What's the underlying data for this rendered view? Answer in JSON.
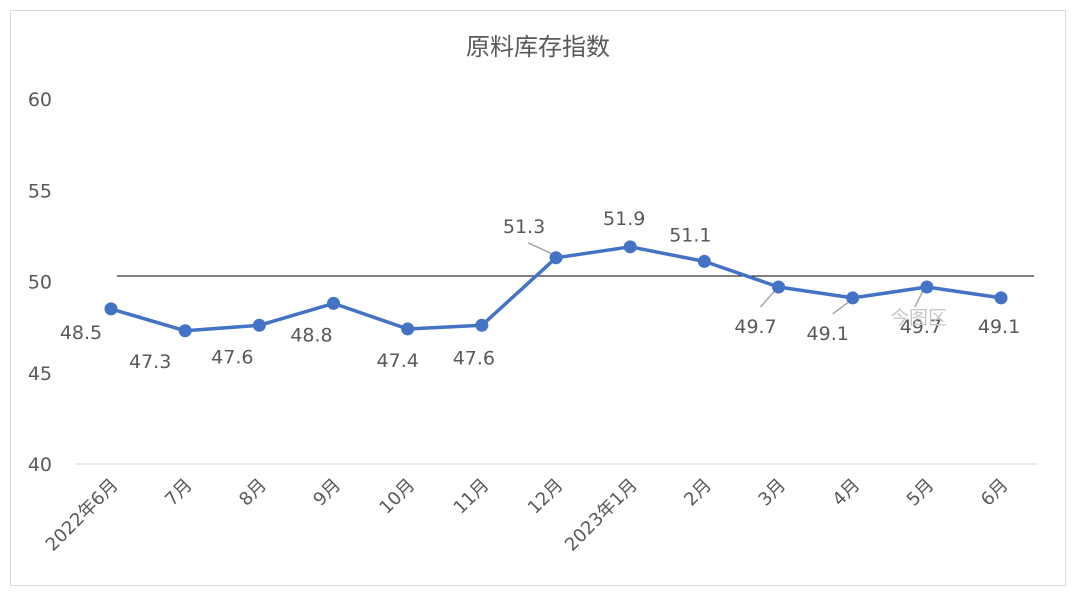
{
  "chart_data": {
    "type": "line",
    "title": "原料库存指数",
    "categories": [
      "2022年6月",
      "7月",
      "8月",
      "9月",
      "10月",
      "11月",
      "12月",
      "2023年1月",
      "2月",
      "3月",
      "4月",
      "5月",
      "6月"
    ],
    "series": [
      {
        "values": [
          48.5,
          47.3,
          47.6,
          48.8,
          47.4,
          47.6,
          51.3,
          51.9,
          51.1,
          49.7,
          49.1,
          49.7,
          49.1
        ],
        "color": "#4472c4"
      }
    ],
    "data_labels": [
      "48.5",
      "47.3",
      "47.6",
      "48.8",
      "47.4",
      "47.6",
      "51.3",
      "51.9",
      "51.1",
      "49.7",
      "49.1",
      "49.7",
      "49.1"
    ],
    "yticks": [
      "40",
      "45",
      "50",
      "55",
      "60"
    ],
    "ylim": [
      40,
      60
    ],
    "reference_line": 50.3,
    "grid": false,
    "legend": "none"
  },
  "watermark": "今图区"
}
